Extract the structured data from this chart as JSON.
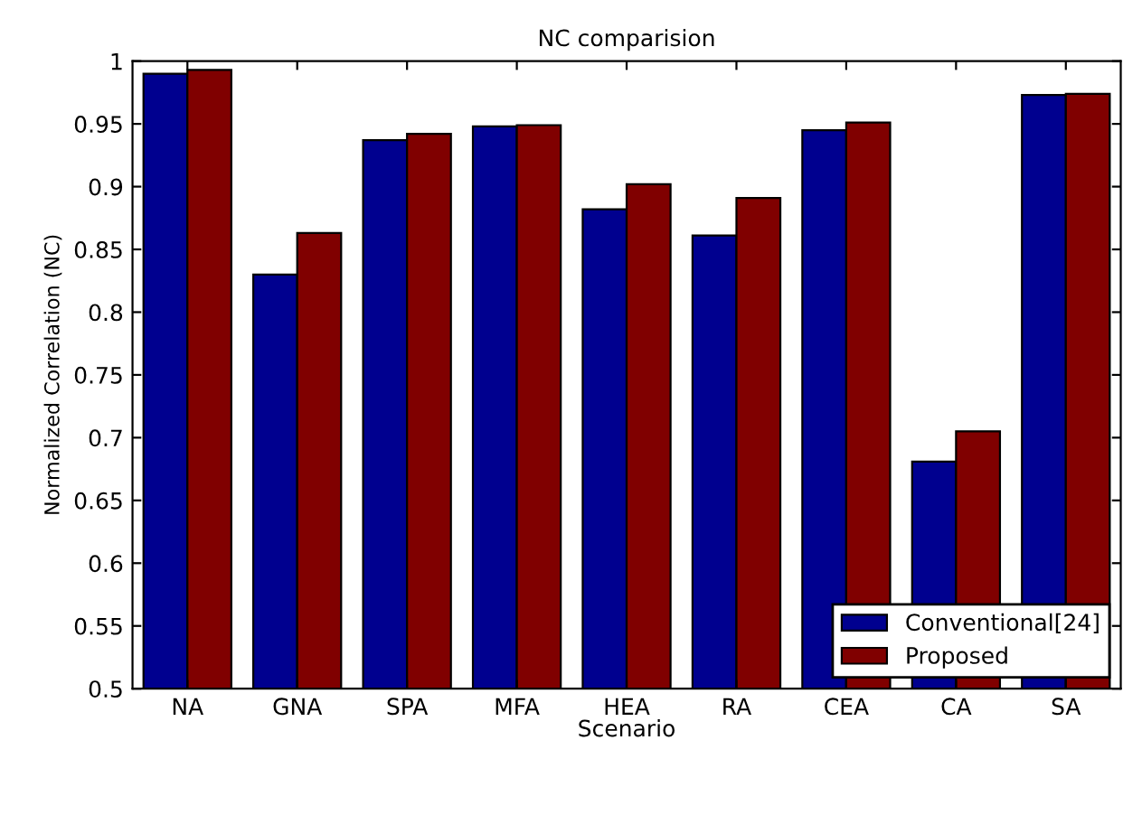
{
  "chart_data": {
    "type": "bar",
    "title": "NC comparision",
    "xlabel": "Scenario",
    "ylabel": "Normalized Correlation (NC)",
    "categories": [
      "NA",
      "GNA",
      "SPA",
      "MFA",
      "HEA",
      "RA",
      "CEA",
      "CA",
      "SA"
    ],
    "series": [
      {
        "name": "Conventional[24]",
        "color": "#00008f",
        "values": [
          0.99,
          0.83,
          0.937,
          0.948,
          0.882,
          0.861,
          0.945,
          0.681,
          0.973
        ]
      },
      {
        "name": "Proposed",
        "color": "#800000",
        "values": [
          0.993,
          0.863,
          0.942,
          0.949,
          0.902,
          0.891,
          0.951,
          0.705,
          0.974
        ]
      }
    ],
    "ylim": [
      0.5,
      1
    ],
    "yticks": [
      0.5,
      0.55,
      0.6,
      0.65,
      0.7,
      0.75,
      0.8,
      0.85,
      0.9,
      0.95,
      1
    ],
    "grid": false,
    "legend": "bottom right"
  }
}
